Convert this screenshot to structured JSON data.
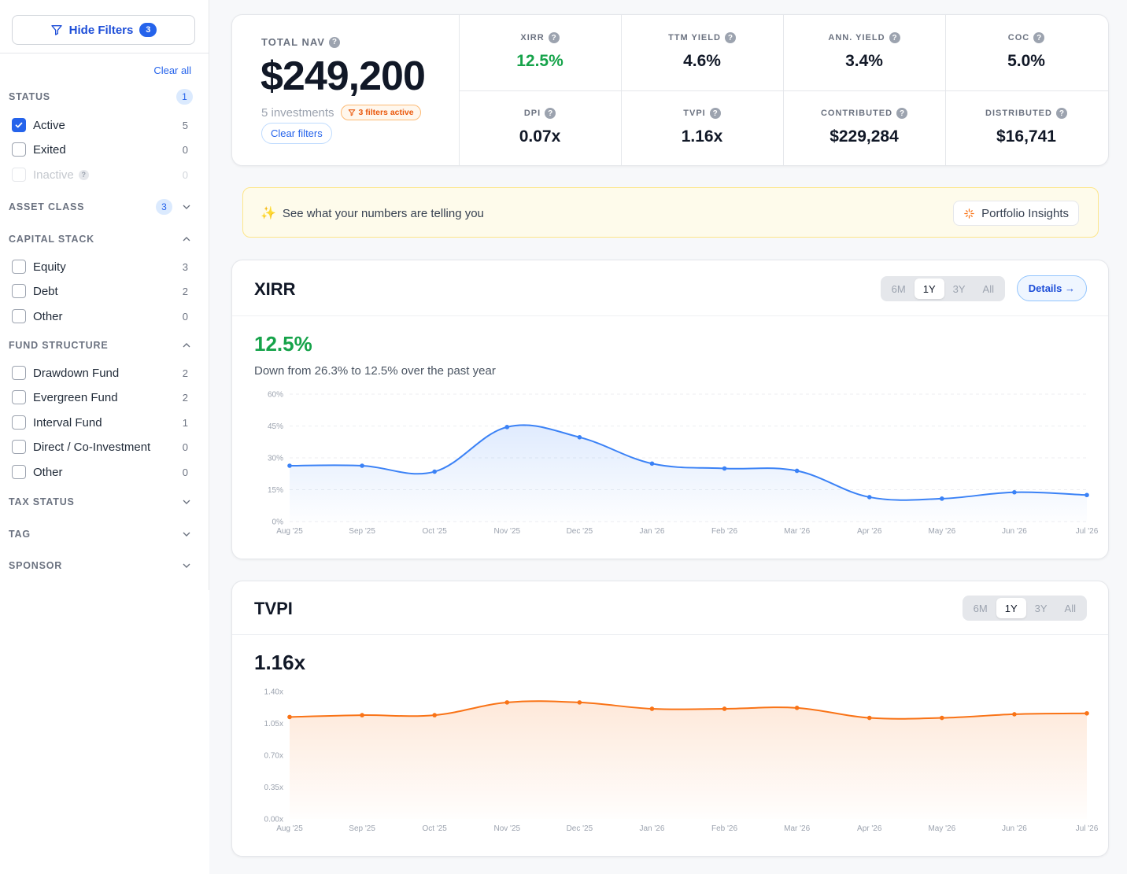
{
  "sidebar": {
    "hide_filters_label": "Hide Filters",
    "hide_filters_count": "3",
    "clear_all": "Clear all",
    "status": {
      "title": "STATUS",
      "count": "1",
      "options": [
        {
          "label": "Active",
          "count": "5",
          "checked": true
        },
        {
          "label": "Exited",
          "count": "0",
          "checked": false
        },
        {
          "label": "Inactive",
          "count": "0",
          "checked": false,
          "disabled": true
        }
      ]
    },
    "asset_class": {
      "title": "ASSET CLASS",
      "count": "3"
    },
    "capital_stack": {
      "title": "CAPITAL STACK",
      "options": [
        {
          "label": "Equity",
          "count": "3"
        },
        {
          "label": "Debt",
          "count": "2"
        },
        {
          "label": "Other",
          "count": "0"
        }
      ]
    },
    "fund_structure": {
      "title": "FUND STRUCTURE",
      "options": [
        {
          "label": "Drawdown Fund",
          "count": "2"
        },
        {
          "label": "Evergreen Fund",
          "count": "2"
        },
        {
          "label": "Interval Fund",
          "count": "1"
        },
        {
          "label": "Direct / Co-Investment",
          "count": "0"
        },
        {
          "label": "Other",
          "count": "0"
        }
      ]
    },
    "tax_status": {
      "title": "TAX STATUS"
    },
    "tag": {
      "title": "TAG"
    },
    "sponsor": {
      "title": "SPONSOR"
    }
  },
  "stats": {
    "nav_label": "TOTAL NAV",
    "nav_value": "$249,200",
    "investments": "5 investments",
    "filters_active": "3 filters active",
    "clear_filters": "Clear filters",
    "metrics": [
      {
        "label": "XIRR",
        "value": "12.5%",
        "color": "#16a34a"
      },
      {
        "label": "TTM YIELD",
        "value": "4.6%"
      },
      {
        "label": "ANN. YIELD",
        "value": "3.4%"
      },
      {
        "label": "COC",
        "value": "5.0%"
      },
      {
        "label": "DPI",
        "value": "0.07x"
      },
      {
        "label": "TVPI",
        "value": "1.16x"
      },
      {
        "label": "CONTRIBUTED",
        "value": "$229,284"
      },
      {
        "label": "DISTRIBUTED",
        "value": "$16,741"
      }
    ]
  },
  "insight": {
    "text": "See what your numbers are telling you",
    "button": "Portfolio Insights",
    "icon": "sparkles-icon"
  },
  "xirr_card": {
    "title": "XIRR",
    "ranges": [
      "6M",
      "1Y",
      "3Y",
      "All"
    ],
    "active_range": "1Y",
    "details": "Details →",
    "value": "12.5%",
    "subtext": "Down from 26.3% to 12.5% over the past year",
    "accent": "#3b82f6"
  },
  "tvpi_card": {
    "title": "TVPI",
    "ranges": [
      "6M",
      "1Y",
      "3Y",
      "All"
    ],
    "active_range": "1Y",
    "value": "1.16x",
    "accent": "#f97316"
  },
  "chart_data": [
    {
      "type": "area",
      "title": "XIRR",
      "x": [
        "Aug '25",
        "Sep '25",
        "Oct '25",
        "Nov '25",
        "Dec '25",
        "Jan '26",
        "Feb '26",
        "Mar '26",
        "Apr '26",
        "May '26",
        "Jun '26",
        "Jul '26"
      ],
      "values": [
        26.3,
        26.3,
        23.5,
        44.5,
        39.7,
        27.3,
        25.0,
        23.9,
        11.5,
        10.8,
        13.8,
        12.5
      ],
      "ylim": [
        0,
        60
      ],
      "yticks": [
        "0%",
        "15%",
        "30%",
        "45%",
        "60%"
      ],
      "grid": true,
      "color": "#3b82f6"
    },
    {
      "type": "area",
      "title": "TVPI",
      "x": [
        "Aug '25",
        "Sep '25",
        "Oct '25",
        "Nov '25",
        "Dec '25",
        "Jan '26",
        "Feb '26",
        "Mar '26",
        "Apr '26",
        "May '26",
        "Jun '26",
        "Jul '26"
      ],
      "values": [
        1.12,
        1.14,
        1.14,
        1.28,
        1.28,
        1.21,
        1.21,
        1.22,
        1.11,
        1.11,
        1.15,
        1.16
      ],
      "ylim": [
        0,
        1.4
      ],
      "yticks": [
        "0.00x",
        "0.35x",
        "0.70x",
        "1.05x",
        "1.40x"
      ],
      "grid": false,
      "color": "#f97316"
    }
  ]
}
